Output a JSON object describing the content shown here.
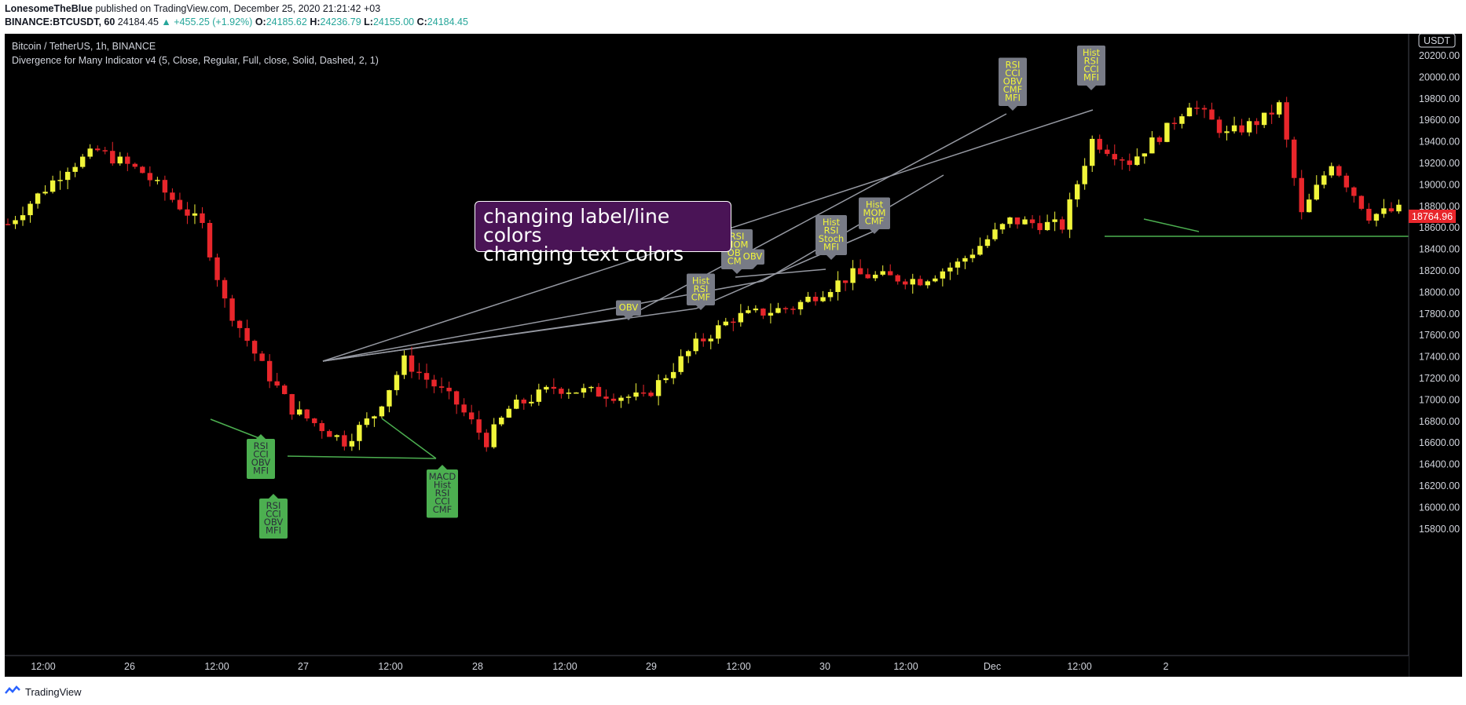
{
  "header": {
    "author": "LonesomeTheBlue",
    "published": "published on TradingView.com, December 25, 2020 21:21:42 +03",
    "symbol": "BINANCE:BTCUSDT, 60",
    "price": "24184.45",
    "change": "▲ +455.25 (+1.92%)",
    "o_label": "O:",
    "o": "24185.62",
    "h_label": "H:",
    "h": "24236.79",
    "l_label": "L:",
    "l": "24155.00",
    "c_label": "C:",
    "c": "24184.45"
  },
  "chart": {
    "title": "Bitcoin / TetherUS, 1h, BINANCE",
    "indicator": "Divergence for Many Indicator v4 (5, Close, Regular, Full, close, Solid, Dashed, 2, 1)",
    "currency": "USDT",
    "current_price": "18764.96",
    "note_line1": "changing label/line colors",
    "note_line2": "changing text colors",
    "colors": {
      "bull": "#f1f53a",
      "bear": "#e8262b",
      "bull_label": "#4caf50",
      "bear_label": "#787b86",
      "bear_text": "#f1f53a",
      "bull_text": "#2a2e39",
      "price_tag": "#e8262b"
    },
    "y_axis": [
      "20200.00",
      "20000.00",
      "19800.00",
      "19600.00",
      "19400.00",
      "19200.00",
      "19000.00",
      "18800.00",
      "18600.00",
      "18400.00",
      "18200.00",
      "18000.00",
      "17800.00",
      "17600.00",
      "17400.00",
      "17200.00",
      "17000.00",
      "16800.00",
      "16600.00",
      "16400.00",
      "16200.00",
      "16000.00",
      "15800.00"
    ],
    "x_axis": [
      "12:00",
      "26",
      "12:00",
      "27",
      "12:00",
      "28",
      "12:00",
      "29",
      "12:00",
      "30",
      "12:00",
      "Dec",
      "12:00",
      "2"
    ],
    "bear_labels": [
      [
        "RSI",
        "CCI",
        "OBV",
        "CMF",
        "MFI"
      ],
      [
        "Hist",
        "RSI",
        "CCI",
        "MFI"
      ],
      [
        "Hist",
        "MOM",
        "CMF"
      ],
      [
        "Hist",
        "RSI",
        "Stoch",
        "MFI"
      ],
      [
        "RSI",
        "MOM",
        "OBV",
        "CMF"
      ],
      [
        "OBV"
      ],
      [
        "Hist",
        "RSI",
        "CMF"
      ],
      [
        "OBV"
      ]
    ],
    "bull_labels": [
      [
        "RSI",
        "CCI",
        "OBV",
        "MFI"
      ],
      [
        "RSI",
        "CCI",
        "OBV",
        "MFI"
      ],
      [
        "MACD",
        "Hist",
        "RSI",
        "CCI",
        "CMF"
      ]
    ]
  },
  "footer": {
    "brand": "TradingView",
    "logo_icon": "tradingview-logo-icon"
  }
}
